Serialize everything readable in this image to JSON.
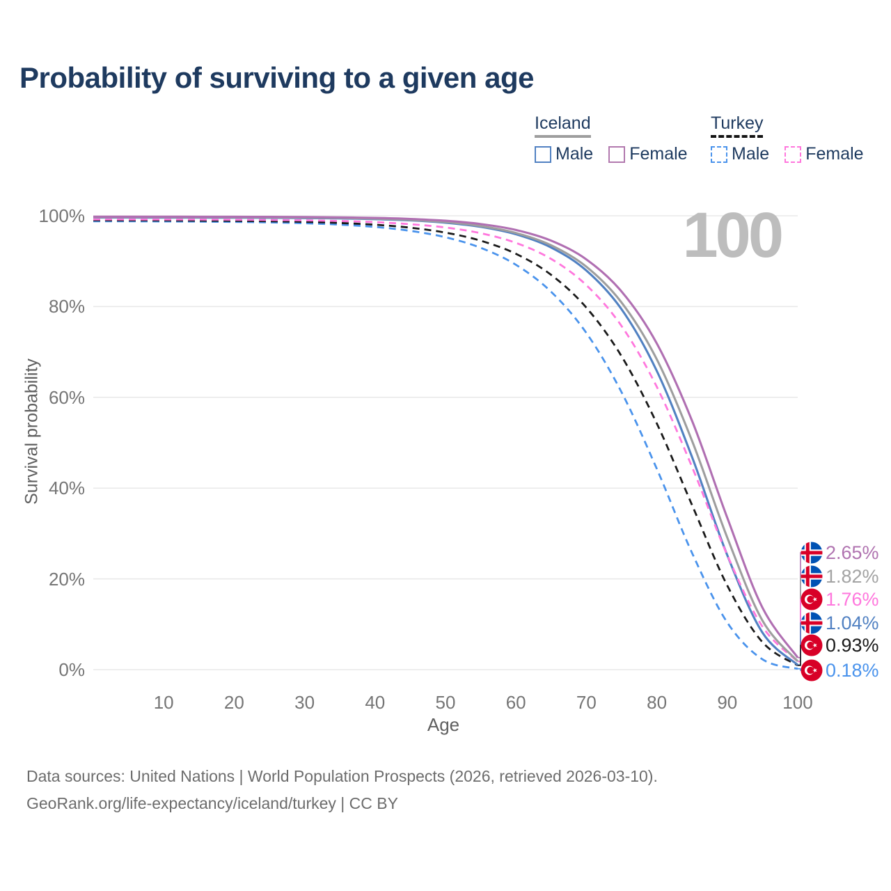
{
  "header": {
    "title": "Probability of surviving to a given age"
  },
  "legend": {
    "groups": [
      {
        "country": "Iceland",
        "line_style": "solid",
        "underline_color": "#9e9e9e",
        "items": [
          {
            "label": "Male",
            "color": "#5181c2",
            "dashed": false
          },
          {
            "label": "Female",
            "color": "#b279ae",
            "dashed": false
          }
        ]
      },
      {
        "country": "Turkey",
        "line_style": "dashed",
        "underline_color": "#141414",
        "items": [
          {
            "label": "Male",
            "color": "#4a93ec",
            "dashed": true
          },
          {
            "label": "Female",
            "color": "#ff77dd",
            "dashed": true
          }
        ]
      }
    ]
  },
  "chart_data": {
    "type": "line",
    "title": "Probability of surviving to a given age",
    "xlabel": "Age",
    "ylabel": "Survival probability",
    "xlim": [
      0,
      100
    ],
    "ylim": [
      0,
      100
    ],
    "grid": "horizontal",
    "hover_age_label": "100",
    "x_ticks": [
      10,
      20,
      30,
      40,
      50,
      60,
      70,
      80,
      90,
      100
    ],
    "y_ticks": [
      0,
      20,
      40,
      60,
      80,
      100
    ],
    "y_tick_labels": [
      "0%",
      "20%",
      "40%",
      "60%",
      "80%",
      "100%"
    ],
    "x": [
      0,
      5,
      10,
      15,
      20,
      25,
      30,
      35,
      40,
      45,
      50,
      55,
      60,
      65,
      70,
      75,
      80,
      85,
      90,
      95,
      100
    ],
    "series": [
      {
        "id": "iceland-female",
        "country": "Iceland",
        "sex": "Female",
        "flag": "iceland",
        "color": "#b06fb2",
        "label_color": "#b073b0",
        "dashed": false,
        "end_label": "2.65%",
        "values": [
          99.8,
          99.8,
          99.8,
          99.79,
          99.78,
          99.76,
          99.72,
          99.65,
          99.53,
          99.31,
          98.91,
          98.18,
          96.87,
          94.52,
          90.38,
          83.3,
          71.85,
          54.83,
          33.46,
          13.63,
          2.65
        ]
      },
      {
        "id": "iceland-all",
        "country": "Iceland",
        "sex": "Both sexes",
        "flag": "iceland",
        "color": "#9e9e9e",
        "label_color": "#a3a3a3",
        "dashed": false,
        "end_label": "1.82%",
        "values": [
          99.7,
          99.7,
          99.69,
          99.68,
          99.67,
          99.65,
          99.6,
          99.52,
          99.37,
          99.1,
          98.62,
          97.73,
          96.21,
          93.49,
          88.78,
          80.88,
          68.36,
          50.42,
          29.1,
          10.79,
          1.82
        ]
      },
      {
        "id": "iceland-male",
        "country": "Iceland",
        "sex": "Male",
        "flag": "iceland",
        "color": "#5181c2",
        "label_color": "#5181c2",
        "dashed": false,
        "end_label": "1.04%",
        "values": [
          99.6,
          99.6,
          99.59,
          99.58,
          99.57,
          99.55,
          99.5,
          99.42,
          99.26,
          98.99,
          98.48,
          97.57,
          95.93,
          93.01,
          87.93,
          79.38,
          65.8,
          46.84,
          25.22,
          8.14,
          1.04
        ]
      },
      {
        "id": "turkey-female",
        "country": "Turkey",
        "sex": "Female",
        "flag": "turkey",
        "color": "#ff77dd",
        "label_color": "#ff77dd",
        "dashed": true,
        "end_label": "1.76%",
        "values": [
          99.2,
          99.19,
          99.18,
          99.17,
          99.14,
          99.08,
          99.0,
          98.85,
          98.6,
          98.15,
          97.42,
          96.17,
          94.03,
          90.49,
          84.71,
          75.69,
          62.3,
          44.67,
          25.25,
          9.46,
          1.76
        ]
      },
      {
        "id": "turkey-all",
        "country": "Turkey",
        "sex": "Both sexes",
        "flag": "turkey",
        "color": "#1a1a1a",
        "label_color": "#1a1a1a",
        "dashed": true,
        "end_label": "0.93%",
        "values": [
          99.0,
          98.99,
          98.97,
          98.93,
          98.89,
          98.8,
          98.66,
          98.42,
          98.03,
          97.38,
          96.29,
          94.51,
          91.62,
          86.98,
          79.76,
          69.03,
          54.23,
          36.26,
          18.52,
          6.04,
          0.93
        ]
      },
      {
        "id": "turkey-male",
        "country": "Turkey",
        "sex": "Male",
        "flag": "turkey",
        "color": "#4a93ec",
        "label_color": "#4a93ec",
        "dashed": true,
        "end_label": "0.18%",
        "values": [
          98.8,
          98.79,
          98.76,
          98.72,
          98.66,
          98.55,
          98.36,
          98.05,
          97.54,
          96.68,
          95.27,
          92.95,
          89.2,
          83.25,
          74.17,
          61.11,
          44.24,
          25.7,
          10.39,
          2.27,
          0.18
        ]
      }
    ],
    "flag_colors": {
      "blue": "#0052b4",
      "red": "#d80027",
      "white": "#ffffff"
    }
  },
  "footer": {
    "line1": "Data sources: United Nations | World Population Prospects (2026, retrieved 2026-03-10).",
    "line2": "GeoRank.org/life-expectancy/iceland/turkey | CC BY"
  }
}
